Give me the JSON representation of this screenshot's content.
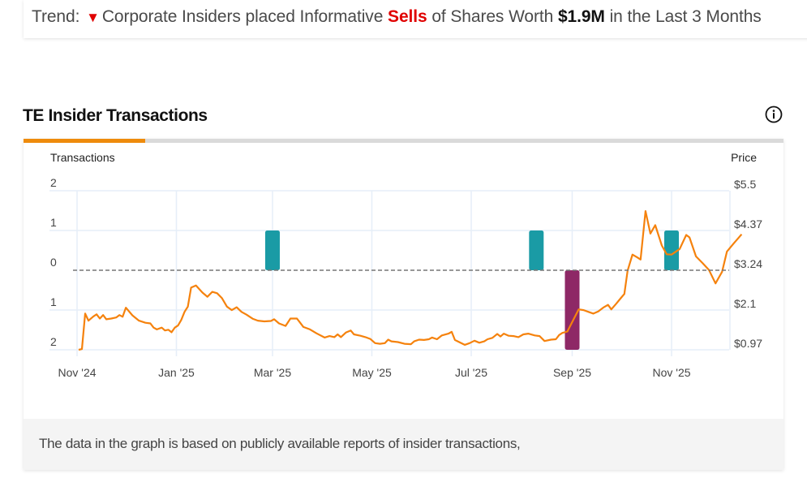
{
  "trend": {
    "label": "Trend:",
    "arrow_icon": "down-triangle-icon",
    "text_before": "Corporate Insiders placed Informative",
    "highlight": "Sells",
    "text_middle": "of Shares Worth",
    "amount": "$1.9M",
    "text_after": "in the Last 3 Months"
  },
  "section": {
    "title": "TE Insider Transactions",
    "info_icon": "info-icon"
  },
  "footer": {
    "text": "The data in the graph is based on publicly available reports of insider transactions,"
  },
  "colors": {
    "accent": "#ee8b0c",
    "price_line": "#f5820d",
    "buy_bar": "#1a9ba5",
    "sell_bar": "#8e2866",
    "sell_text": "#e00000",
    "grid": "#e6eef8",
    "zero_line": "#777777"
  },
  "chart_data": {
    "type": "bar+line",
    "left_axis_title": "Transactions",
    "right_axis_title": "Price",
    "left_tick_labels": [
      "2",
      "1",
      "0",
      "1",
      "2"
    ],
    "left_tick_values": [
      2,
      1,
      0,
      -1,
      -2
    ],
    "right_tick_labels": [
      "$5.5",
      "$4.37",
      "$3.24",
      "$2.1",
      "$0.97"
    ],
    "right_tick_values": [
      5.5,
      4.37,
      3.24,
      2.1,
      0.97
    ],
    "ylim_transactions": [
      -2,
      2
    ],
    "ylim_price": [
      0.97,
      5.5
    ],
    "x_tick_labels": [
      "Nov '24",
      "Jan '25",
      "Mar '25",
      "May '25",
      "Jul '25",
      "Sep '25",
      "Nov '25"
    ],
    "x_tick_dates": [
      "2024-11-01",
      "2025-01-01",
      "2025-03-01",
      "2025-05-01",
      "2025-07-01",
      "2025-09-01",
      "2025-11-01"
    ],
    "x_range": [
      "2024-10-29",
      "2025-12-15"
    ],
    "grid": true,
    "zero_line_dashed": true,
    "transactions": [
      {
        "date": "2025-03-01",
        "type": "buy",
        "value": 1
      },
      {
        "date": "2025-08-10",
        "type": "buy",
        "value": 1
      },
      {
        "date": "2025-09-01",
        "type": "sell",
        "value": -2
      },
      {
        "date": "2025-11-01",
        "type": "buy",
        "value": 1
      }
    ],
    "price_series": {
      "name": "Price",
      "points": [
        [
          "2024-11-02",
          0.97
        ],
        [
          "2024-11-04",
          0.99
        ],
        [
          "2024-11-06",
          2.0
        ],
        [
          "2024-11-08",
          1.8
        ],
        [
          "2024-11-11",
          1.92
        ],
        [
          "2024-11-13",
          1.98
        ],
        [
          "2024-11-15",
          1.86
        ],
        [
          "2024-11-17",
          1.96
        ],
        [
          "2024-11-19",
          1.84
        ],
        [
          "2024-11-22",
          1.86
        ],
        [
          "2024-11-25",
          1.89
        ],
        [
          "2024-11-27",
          1.96
        ],
        [
          "2024-11-29",
          1.91
        ],
        [
          "2024-12-01",
          2.17
        ],
        [
          "2024-12-05",
          1.95
        ],
        [
          "2024-12-09",
          1.8
        ],
        [
          "2024-12-13",
          1.74
        ],
        [
          "2024-12-16",
          1.72
        ],
        [
          "2024-12-18",
          1.6
        ],
        [
          "2024-12-20",
          1.55
        ],
        [
          "2024-12-23",
          1.6
        ],
        [
          "2024-12-25",
          1.52
        ],
        [
          "2024-12-27",
          1.54
        ],
        [
          "2024-12-29",
          1.47
        ],
        [
          "2024-12-31",
          1.6
        ],
        [
          "2025-01-02",
          1.66
        ],
        [
          "2025-01-04",
          1.82
        ],
        [
          "2025-01-06",
          2.05
        ],
        [
          "2025-01-08",
          2.2
        ],
        [
          "2025-01-10",
          2.74
        ],
        [
          "2025-01-13",
          2.8
        ],
        [
          "2025-01-17",
          2.6
        ],
        [
          "2025-01-20",
          2.48
        ],
        [
          "2025-01-23",
          2.62
        ],
        [
          "2025-01-26",
          2.58
        ],
        [
          "2025-01-29",
          2.44
        ],
        [
          "2025-02-01",
          2.2
        ],
        [
          "2025-02-04",
          2.1
        ],
        [
          "2025-02-07",
          2.18
        ],
        [
          "2025-02-10",
          2.05
        ],
        [
          "2025-02-13",
          1.97
        ],
        [
          "2025-02-17",
          1.85
        ],
        [
          "2025-02-20",
          1.8
        ],
        [
          "2025-02-24",
          1.78
        ],
        [
          "2025-02-28",
          1.79
        ],
        [
          "2025-03-02",
          1.84
        ],
        [
          "2025-03-05",
          1.72
        ],
        [
          "2025-03-09",
          1.65
        ],
        [
          "2025-03-12",
          1.86
        ],
        [
          "2025-03-16",
          1.86
        ],
        [
          "2025-03-18",
          1.74
        ],
        [
          "2025-03-20",
          1.62
        ],
        [
          "2025-03-24",
          1.55
        ],
        [
          "2025-03-28",
          1.44
        ],
        [
          "2025-04-02",
          1.32
        ],
        [
          "2025-04-05",
          1.36
        ],
        [
          "2025-04-08",
          1.33
        ],
        [
          "2025-04-10",
          1.41
        ],
        [
          "2025-04-12",
          1.33
        ],
        [
          "2025-04-15",
          1.46
        ],
        [
          "2025-04-18",
          1.52
        ],
        [
          "2025-04-20",
          1.41
        ],
        [
          "2025-04-24",
          1.37
        ],
        [
          "2025-04-27",
          1.33
        ],
        [
          "2025-04-30",
          1.28
        ],
        [
          "2025-05-03",
          1.16
        ],
        [
          "2025-05-06",
          1.14
        ],
        [
          "2025-05-09",
          1.16
        ],
        [
          "2025-05-11",
          1.26
        ],
        [
          "2025-05-13",
          1.21
        ],
        [
          "2025-05-17",
          1.19
        ],
        [
          "2025-05-21",
          1.14
        ],
        [
          "2025-05-25",
          1.13
        ],
        [
          "2025-05-27",
          1.21
        ],
        [
          "2025-05-30",
          1.26
        ],
        [
          "2025-06-02",
          1.25
        ],
        [
          "2025-06-05",
          1.27
        ],
        [
          "2025-06-07",
          1.32
        ],
        [
          "2025-06-10",
          1.27
        ],
        [
          "2025-06-13",
          1.38
        ],
        [
          "2025-06-17",
          1.43
        ],
        [
          "2025-06-19",
          1.48
        ],
        [
          "2025-06-21",
          1.25
        ],
        [
          "2025-06-24",
          1.18
        ],
        [
          "2025-06-27",
          1.11
        ],
        [
          "2025-06-30",
          1.16
        ],
        [
          "2025-07-03",
          1.23
        ],
        [
          "2025-07-06",
          1.17
        ],
        [
          "2025-07-09",
          1.21
        ],
        [
          "2025-07-11",
          1.27
        ],
        [
          "2025-07-14",
          1.31
        ],
        [
          "2025-07-17",
          1.42
        ],
        [
          "2025-07-19",
          1.35
        ],
        [
          "2025-07-21",
          1.43
        ],
        [
          "2025-07-24",
          1.37
        ],
        [
          "2025-07-27",
          1.36
        ],
        [
          "2025-07-30",
          1.33
        ],
        [
          "2025-08-02",
          1.41
        ],
        [
          "2025-08-05",
          1.43
        ],
        [
          "2025-08-09",
          1.38
        ],
        [
          "2025-08-12",
          1.36
        ],
        [
          "2025-08-15",
          1.22
        ],
        [
          "2025-08-19",
          1.26
        ],
        [
          "2025-08-22",
          1.27
        ],
        [
          "2025-08-24",
          1.39
        ],
        [
          "2025-08-26",
          1.45
        ],
        [
          "2025-08-29",
          1.49
        ],
        [
          "2025-09-05",
          2.12
        ],
        [
          "2025-09-08",
          2.1
        ],
        [
          "2025-09-11",
          2.05
        ],
        [
          "2025-09-14",
          2.0
        ],
        [
          "2025-09-17",
          2.06
        ],
        [
          "2025-09-20",
          2.17
        ],
        [
          "2025-09-23",
          2.25
        ],
        [
          "2025-09-25",
          2.12
        ],
        [
          "2025-09-28",
          2.28
        ],
        [
          "2025-10-01",
          2.45
        ],
        [
          "2025-10-03",
          2.56
        ],
        [
          "2025-10-05",
          3.22
        ],
        [
          "2025-10-08",
          3.68
        ],
        [
          "2025-10-11",
          3.6
        ],
        [
          "2025-10-13",
          3.54
        ],
        [
          "2025-10-16",
          4.92
        ],
        [
          "2025-10-19",
          4.28
        ],
        [
          "2025-10-22",
          4.52
        ],
        [
          "2025-10-26",
          3.94
        ],
        [
          "2025-10-29",
          3.69
        ],
        [
          "2025-11-01",
          3.68
        ],
        [
          "2025-11-06",
          3.84
        ],
        [
          "2025-11-10",
          4.24
        ],
        [
          "2025-11-12",
          4.17
        ],
        [
          "2025-11-16",
          3.63
        ],
        [
          "2025-11-20",
          3.44
        ],
        [
          "2025-11-24",
          3.24
        ],
        [
          "2025-11-28",
          2.86
        ],
        [
          "2025-12-02",
          3.19
        ],
        [
          "2025-12-05",
          3.77
        ],
        [
          "2025-12-09",
          3.99
        ],
        [
          "2025-12-14",
          4.26
        ]
      ]
    }
  }
}
